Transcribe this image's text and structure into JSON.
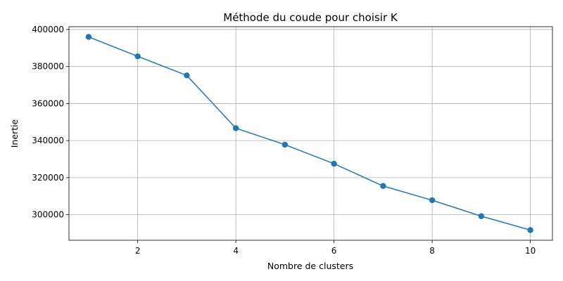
{
  "chart_data": {
    "type": "line",
    "title": "Méthode du coude pour choisir K",
    "xlabel": "Nombre de clusters",
    "ylabel": "Inertie",
    "x": [
      1,
      2,
      3,
      4,
      5,
      6,
      7,
      8,
      9,
      10
    ],
    "series": [
      {
        "values": [
          396000,
          385500,
          375200,
          346700,
          337800,
          327500,
          315500,
          307800,
          299200,
          291700
        ],
        "color": "#1f77b4",
        "marker": "circle"
      }
    ],
    "xlim": [
      0.6,
      10.45
    ],
    "ylim": [
      286200,
      401500
    ],
    "xticks": [
      2,
      4,
      6,
      8,
      10
    ],
    "yticks": [
      300000,
      320000,
      340000,
      360000,
      380000,
      400000
    ],
    "grid": true
  }
}
